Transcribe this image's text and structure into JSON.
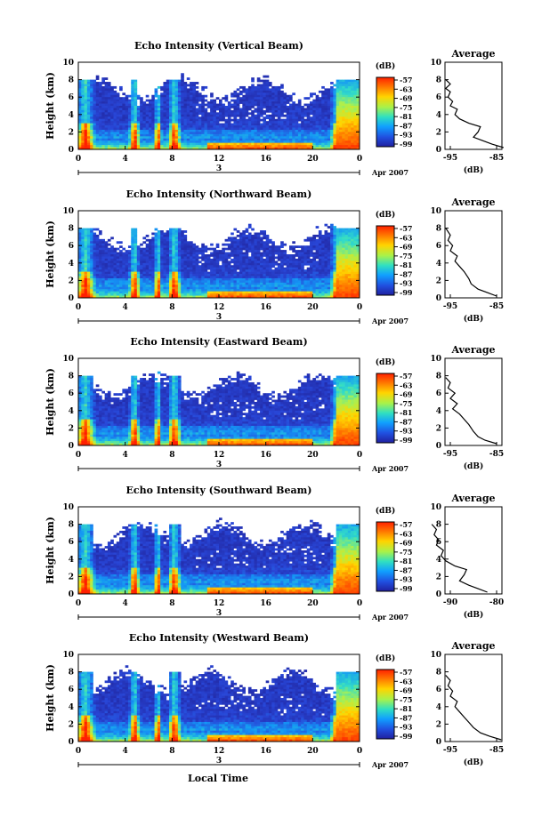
{
  "figure": {
    "xlabel": "Local Time",
    "date_label": "Apr 2007",
    "day_label": "3"
  },
  "chart_data": [
    {
      "type": "heatmap",
      "title": "Echo Intensity (Vertical Beam)",
      "ylabel": "Height (km)",
      "xlim": [
        0,
        24
      ],
      "ylim": [
        0,
        10
      ],
      "x_ticks": [
        "0",
        "4",
        "8",
        "12",
        "16",
        "20",
        "0"
      ],
      "y_ticks": [
        "0",
        "2",
        "4",
        "6",
        "8",
        "10"
      ],
      "colorbar": {
        "unit": "(dB)",
        "ticks": [
          "-57",
          "-63",
          "-69",
          "-75",
          "-81",
          "-87",
          "-93",
          "-99"
        ],
        "colors": [
          "#ff2000",
          "#ff7a00",
          "#ffd400",
          "#a8f24a",
          "#30e0c0",
          "#10a0ff",
          "#2050e0",
          "#2020a0"
        ]
      },
      "average": {
        "title": "Average",
        "xlabel": "(dB)",
        "x_ticks": [
          "-95",
          "-85"
        ],
        "y_ticks": [
          "0",
          "2",
          "4",
          "6",
          "8",
          "10"
        ],
        "profile": [
          [
            -83.5,
            0.2
          ],
          [
            -86,
            0.6
          ],
          [
            -88,
            1
          ],
          [
            -90,
            1.4
          ],
          [
            -89,
            2
          ],
          [
            -88.5,
            2.6
          ],
          [
            -91,
            3
          ],
          [
            -93,
            3.5
          ],
          [
            -94,
            4
          ],
          [
            -93.5,
            4.6
          ],
          [
            -95,
            5
          ],
          [
            -94.5,
            5.5
          ],
          [
            -95.5,
            6
          ],
          [
            -95,
            6.6
          ],
          [
            -96,
            7
          ],
          [
            -95,
            7.5
          ],
          [
            -96,
            8
          ]
        ]
      }
    },
    {
      "type": "heatmap",
      "title": "Echo Intensity (Northward Beam)",
      "ylabel": "Height (km)",
      "xlim": [
        0,
        24
      ],
      "ylim": [
        0,
        10
      ],
      "x_ticks": [
        "0",
        "4",
        "8",
        "12",
        "16",
        "20",
        "0"
      ],
      "y_ticks": [
        "0",
        "2",
        "4",
        "6",
        "8",
        "10"
      ],
      "colorbar": {
        "unit": "(dB)",
        "ticks": [
          "-57",
          "-63",
          "-69",
          "-75",
          "-81",
          "-87",
          "-93",
          "-99"
        ],
        "colors": [
          "#ff2000",
          "#ff7a00",
          "#ffd400",
          "#a8f24a",
          "#30e0c0",
          "#10a0ff",
          "#2050e0",
          "#2020a0"
        ]
      },
      "average": {
        "title": "Average",
        "xlabel": "(dB)",
        "x_ticks": [
          "-95",
          "-85"
        ],
        "y_ticks": [
          "0",
          "2",
          "4",
          "6",
          "8",
          "10"
        ],
        "profile": [
          [
            -85,
            0.2
          ],
          [
            -87,
            0.6
          ],
          [
            -89,
            1
          ],
          [
            -90.5,
            1.6
          ],
          [
            -91,
            2.2
          ],
          [
            -92,
            3
          ],
          [
            -93,
            3.6
          ],
          [
            -94,
            4.2
          ],
          [
            -93.5,
            4.8
          ],
          [
            -95,
            5.4
          ],
          [
            -94.5,
            6
          ],
          [
            -95.5,
            6.6
          ],
          [
            -95,
            7.2
          ],
          [
            -96,
            8
          ]
        ]
      }
    },
    {
      "type": "heatmap",
      "title": "Echo Intensity (Eastward Beam)",
      "ylabel": "Height (km)",
      "xlim": [
        0,
        24
      ],
      "ylim": [
        0,
        10
      ],
      "x_ticks": [
        "0",
        "4",
        "8",
        "12",
        "16",
        "20",
        "0"
      ],
      "y_ticks": [
        "0",
        "2",
        "4",
        "6",
        "8",
        "10"
      ],
      "colorbar": {
        "unit": "(dB)",
        "ticks": [
          "-57",
          "-63",
          "-69",
          "-75",
          "-81",
          "-87",
          "-93",
          "-99"
        ],
        "colors": [
          "#ff2000",
          "#ff7a00",
          "#ffd400",
          "#a8f24a",
          "#30e0c0",
          "#10a0ff",
          "#2050e0",
          "#2020a0"
        ]
      },
      "average": {
        "title": "Average",
        "xlabel": "(dB)",
        "x_ticks": [
          "-95",
          "-85"
        ],
        "y_ticks": [
          "0",
          "2",
          "4",
          "6",
          "8",
          "10"
        ],
        "profile": [
          [
            -85,
            0.2
          ],
          [
            -87.5,
            0.6
          ],
          [
            -89,
            1
          ],
          [
            -90,
            1.6
          ],
          [
            -91,
            2.4
          ],
          [
            -92,
            3
          ],
          [
            -93,
            3.6
          ],
          [
            -94.5,
            4.2
          ],
          [
            -93.5,
            4.8
          ],
          [
            -95,
            5.4
          ],
          [
            -94,
            6
          ],
          [
            -95.5,
            6.6
          ],
          [
            -95,
            7.2
          ],
          [
            -96,
            7.8
          ]
        ]
      }
    },
    {
      "type": "heatmap",
      "title": "Echo Intensity (Southward Beam)",
      "ylabel": "Height (km)",
      "xlim": [
        0,
        24
      ],
      "ylim": [
        0,
        10
      ],
      "x_ticks": [
        "0",
        "4",
        "8",
        "12",
        "16",
        "20",
        "0"
      ],
      "y_ticks": [
        "0",
        "2",
        "4",
        "6",
        "8",
        "10"
      ],
      "colorbar": {
        "unit": "(dB)",
        "ticks": [
          "-57",
          "-63",
          "-69",
          "-75",
          "-81",
          "-87",
          "-93",
          "-99"
        ],
        "colors": [
          "#ff2000",
          "#ff7a00",
          "#ffd400",
          "#a8f24a",
          "#30e0c0",
          "#10a0ff",
          "#2050e0",
          "#2020a0"
        ]
      },
      "average": {
        "title": "Average",
        "xlabel": "(dB)",
        "x_ticks": [
          "-90",
          "-80"
        ],
        "y_ticks": [
          "0",
          "2",
          "4",
          "6",
          "8",
          "10"
        ],
        "profile": [
          [
            -82,
            0.2
          ],
          [
            -84,
            0.6
          ],
          [
            -86,
            1
          ],
          [
            -88,
            1.5
          ],
          [
            -87,
            2.2
          ],
          [
            -86.5,
            2.8
          ],
          [
            -89,
            3.2
          ],
          [
            -91,
            3.8
          ],
          [
            -92,
            4.4
          ],
          [
            -91.5,
            5
          ],
          [
            -93,
            5.6
          ],
          [
            -92.5,
            6.2
          ],
          [
            -93.5,
            6.8
          ],
          [
            -93,
            7.4
          ],
          [
            -94,
            8
          ]
        ]
      }
    },
    {
      "type": "heatmap",
      "title": "Echo Intensity (Westward Beam)",
      "ylabel": "Height (km)",
      "xlim": [
        0,
        24
      ],
      "ylim": [
        0,
        10
      ],
      "x_ticks": [
        "0",
        "4",
        "8",
        "12",
        "16",
        "20",
        "0"
      ],
      "y_ticks": [
        "0",
        "2",
        "4",
        "6",
        "8",
        "10"
      ],
      "colorbar": {
        "unit": "(dB)",
        "ticks": [
          "-57",
          "-63",
          "-69",
          "-75",
          "-81",
          "-87",
          "-93",
          "-99"
        ],
        "colors": [
          "#ff2000",
          "#ff7a00",
          "#ffd400",
          "#a8f24a",
          "#30e0c0",
          "#10a0ff",
          "#2050e0",
          "#2020a0"
        ]
      },
      "average": {
        "title": "Average",
        "xlabel": "(dB)",
        "x_ticks": [
          "-95",
          "-85"
        ],
        "y_ticks": [
          "0",
          "2",
          "4",
          "6",
          "8",
          "10"
        ],
        "profile": [
          [
            -84,
            0.2
          ],
          [
            -86.5,
            0.6
          ],
          [
            -88.5,
            1
          ],
          [
            -90,
            1.6
          ],
          [
            -91,
            2.2
          ],
          [
            -92,
            2.8
          ],
          [
            -93,
            3.4
          ],
          [
            -94,
            4
          ],
          [
            -93.5,
            4.6
          ],
          [
            -95,
            5.2
          ],
          [
            -94.5,
            5.8
          ],
          [
            -95.5,
            6.4
          ],
          [
            -95,
            7
          ],
          [
            -96,
            7.6
          ]
        ]
      }
    }
  ]
}
